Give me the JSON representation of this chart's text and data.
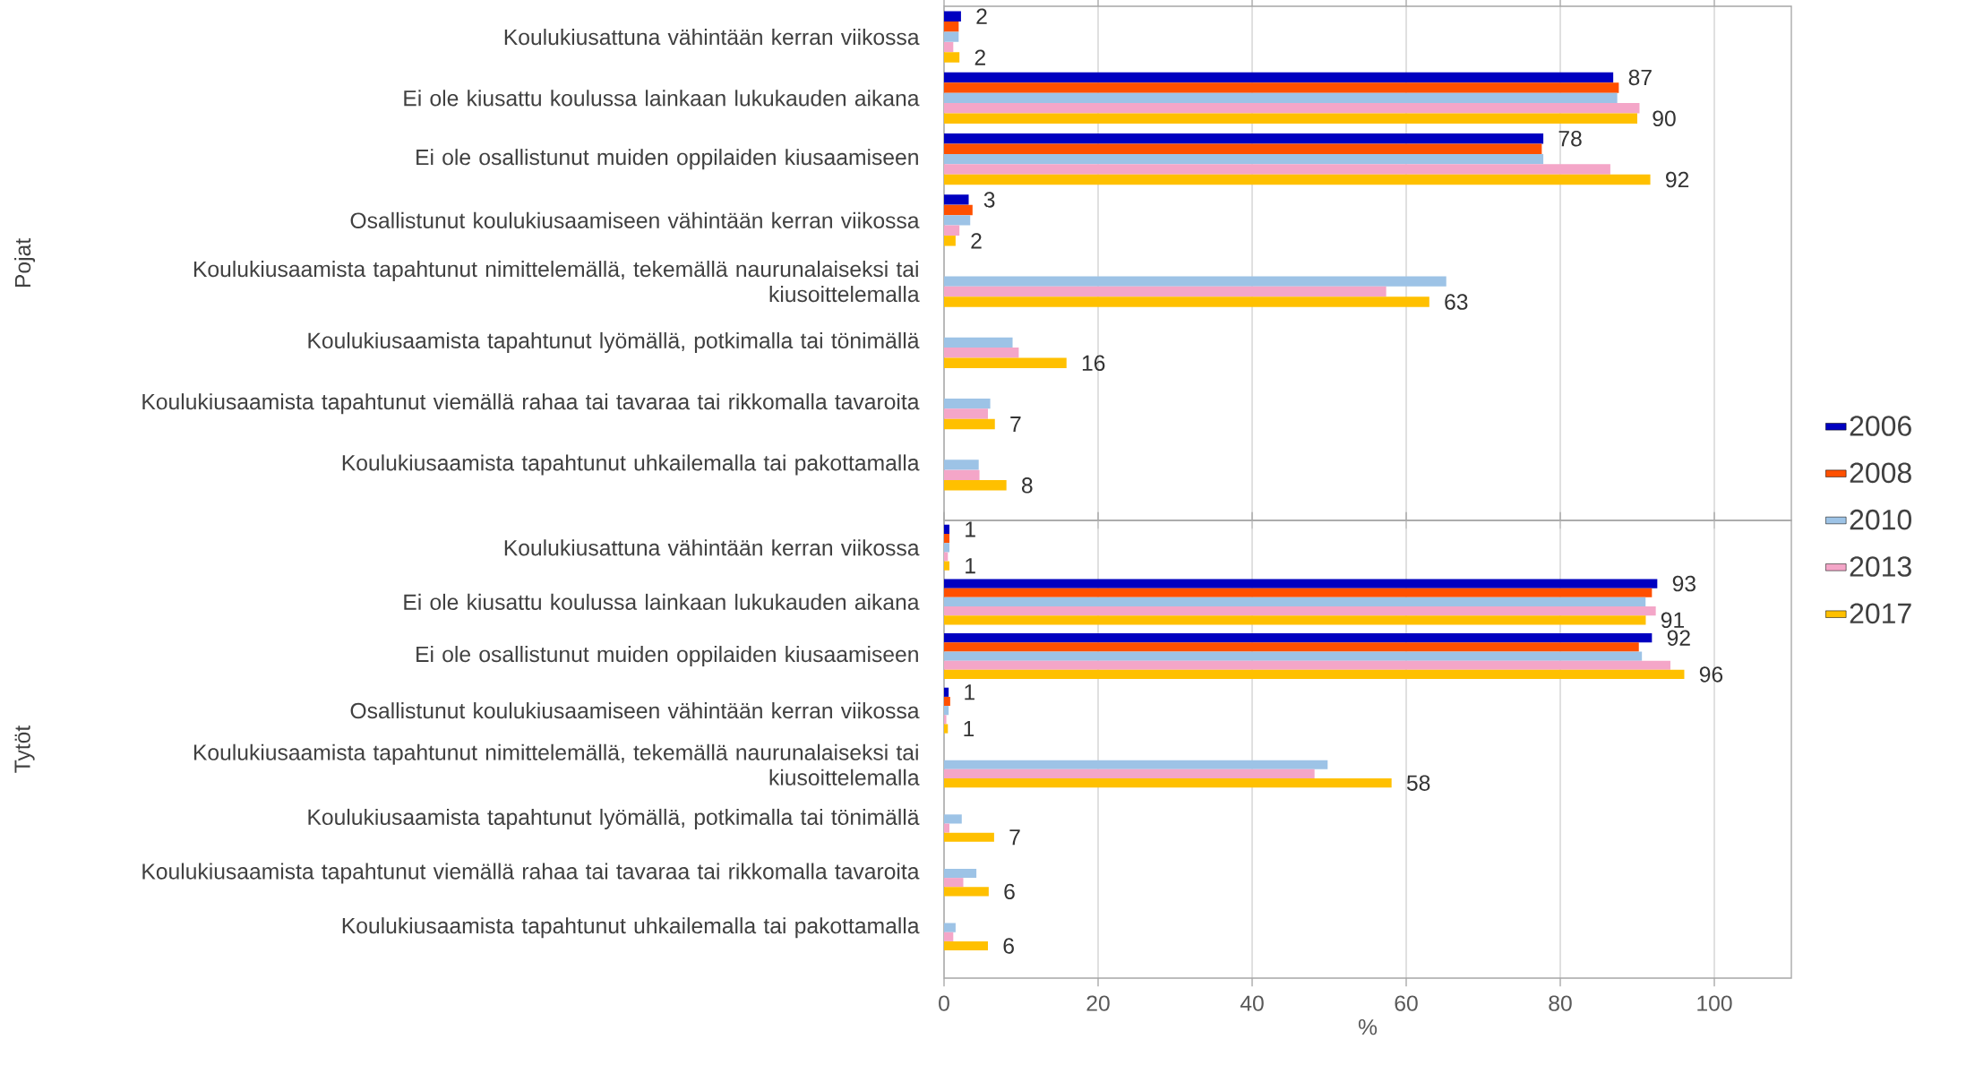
{
  "chart_data": [
    {
      "type": "bar",
      "orientation": "horizontal",
      "ylabel": "Pojat",
      "categories": [
        "Koulukiusattuna vähintään kerran viikossa",
        "Ei ole kiusattu koulussa lainkaan lukukauden aikana",
        "Ei ole osallistunut muiden oppilaiden kiusaamiseen",
        "Osallistunut koulukiusaamiseen vähintään kerran viikossa",
        "Koulukiusaamista tapahtunut nimittelemällä, tekemällä naurunalaiseksi tai kiusoittelemalla",
        "Koulukiusaamista tapahtunut lyömällä, potkimalla tai tönimällä",
        "Koulukiusaamista tapahtunut viemällä rahaa tai tavaraa tai rikkomalla tavaroita",
        "Koulukiusaamista tapahtunut uhkailemalla tai pakottamalla"
      ],
      "series": [
        {
          "color": "#0000c0",
          "values": [
            2.2,
            86.9,
            77.8,
            3.2,
            null,
            null,
            null,
            null
          ],
          "value_labels": [
            "2",
            "87",
            "78",
            "3",
            null,
            null,
            null,
            null
          ]
        },
        {
          "color": "#ff5000",
          "values": [
            1.9,
            87.6,
            77.6,
            3.7,
            null,
            null,
            null,
            null
          ]
        },
        {
          "color": "#9dc3e6",
          "values": [
            1.9,
            87.4,
            77.8,
            3.4,
            65.2,
            8.9,
            6.0,
            4.5
          ]
        },
        {
          "color": "#f4a6c8",
          "values": [
            1.2,
            90.3,
            86.5,
            2.0,
            57.4,
            9.7,
            5.7,
            4.6
          ]
        },
        {
          "color": "#ffc000",
          "values": [
            2.0,
            90.0,
            91.7,
            1.5,
            63.0,
            15.9,
            6.6,
            8.1
          ],
          "value_labels": [
            "2",
            "90",
            "92",
            "2",
            "63",
            "16",
            "7",
            "8"
          ]
        }
      ],
      "xlim": [
        0,
        110
      ],
      "xticks": [
        0,
        20,
        40,
        60,
        80,
        100
      ],
      "grid": "x",
      "tick_labels": "y"
    },
    {
      "type": "bar",
      "orientation": "horizontal",
      "ylabel": "Tytöt",
      "xlabel": "%",
      "categories": [
        "Koulukiusattuna vähintään kerran viikossa",
        "Ei ole kiusattu koulussa lainkaan lukukauden aikana",
        "Ei ole osallistunut muiden oppilaiden kiusaamiseen",
        "Osallistunut koulukiusaamiseen vähintään kerran viikossa",
        "Koulukiusaamista tapahtunut nimittelemällä, tekemällä naurunalaiseksi tai kiusoittelemalla",
        "Koulukiusaamista tapahtunut lyömällä, potkimalla tai tönimällä",
        "Koulukiusaamista tapahtunut viemällä rahaa tai tavaraa tai rikkomalla tavaroita",
        "Koulukiusaamista tapahtunut uhkailemalla tai pakottamalla"
      ],
      "series": [
        {
          "name": "2006",
          "color": "#0000c0",
          "values": [
            0.7,
            92.6,
            91.9,
            0.6,
            null,
            null,
            null,
            null
          ],
          "value_labels": [
            "1",
            "93",
            "92",
            "1",
            null,
            null,
            null,
            null
          ]
        },
        {
          "name": "2008",
          "color": "#ff5000",
          "values": [
            0.7,
            91.9,
            90.2,
            0.8,
            null,
            null,
            null,
            null
          ]
        },
        {
          "name": "2010",
          "color": "#9dc3e6",
          "values": [
            0.7,
            91.1,
            90.6,
            0.6,
            49.8,
            2.3,
            4.2,
            1.5
          ]
        },
        {
          "name": "2013",
          "color": "#f4a6c8",
          "values": [
            0.5,
            92.4,
            94.3,
            0.3,
            48.1,
            0.7,
            2.5,
            1.2
          ]
        },
        {
          "name": "2017",
          "color": "#ffc000",
          "values": [
            0.7,
            91.1,
            96.1,
            0.5,
            58.1,
            6.5,
            5.8,
            5.7
          ],
          "value_labels": [
            "1",
            "91",
            "96",
            "1",
            "58",
            "7",
            "6",
            "6"
          ]
        }
      ],
      "xlim": [
        0,
        110
      ],
      "xticks": [
        0,
        20,
        40,
        60,
        80,
        100
      ],
      "grid": "x",
      "legend": "right"
    }
  ]
}
